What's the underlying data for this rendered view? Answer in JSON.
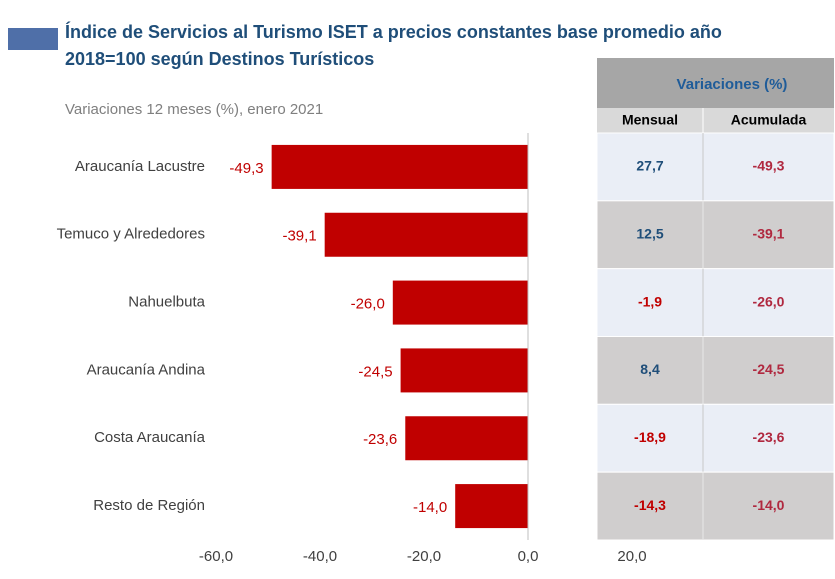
{
  "chart_data": {
    "type": "barh",
    "title": "Índice de Servicios al Turismo ISET a precios constantes base promedio año 2018=100 según Destinos Turísticos",
    "subtitle": "Variaciones 12 meses (%), enero 2021",
    "categories": [
      "Araucanía Lacustre",
      "Temuco y Alrededores",
      "Nahuelbuta",
      "Araucanía Andina",
      "Costa Araucanía",
      "Resto de Región"
    ],
    "values": [
      -49.3,
      -39.1,
      -26.0,
      -24.5,
      -23.6,
      -14.0
    ],
    "value_labels": [
      "-49,3",
      "-39,1",
      "-26,0",
      "-24,5",
      "-23,6",
      "-14,0"
    ],
    "color": "#c00000",
    "xlim": [
      -60,
      20
    ],
    "xticks": [
      {
        "value": -60,
        "label": "-60,0"
      },
      {
        "value": -40,
        "label": "-40,0"
      },
      {
        "value": -20,
        "label": "-20,0"
      },
      {
        "value": 0,
        "label": "0,0"
      },
      {
        "value": 20,
        "label": "20,0"
      }
    ],
    "grid": false
  },
  "table": {
    "title": "Variaciones (%)",
    "columns": [
      "Mensual",
      "Acumulada"
    ],
    "rows": [
      [
        "27,7",
        "-49,3"
      ],
      [
        "12,5",
        "-39,1"
      ],
      [
        "-1,9",
        "-26,0"
      ],
      [
        "8,4",
        "-24,5"
      ],
      [
        "-18,9",
        "-23,6"
      ],
      [
        "-14,3",
        "-14,0"
      ]
    ]
  }
}
